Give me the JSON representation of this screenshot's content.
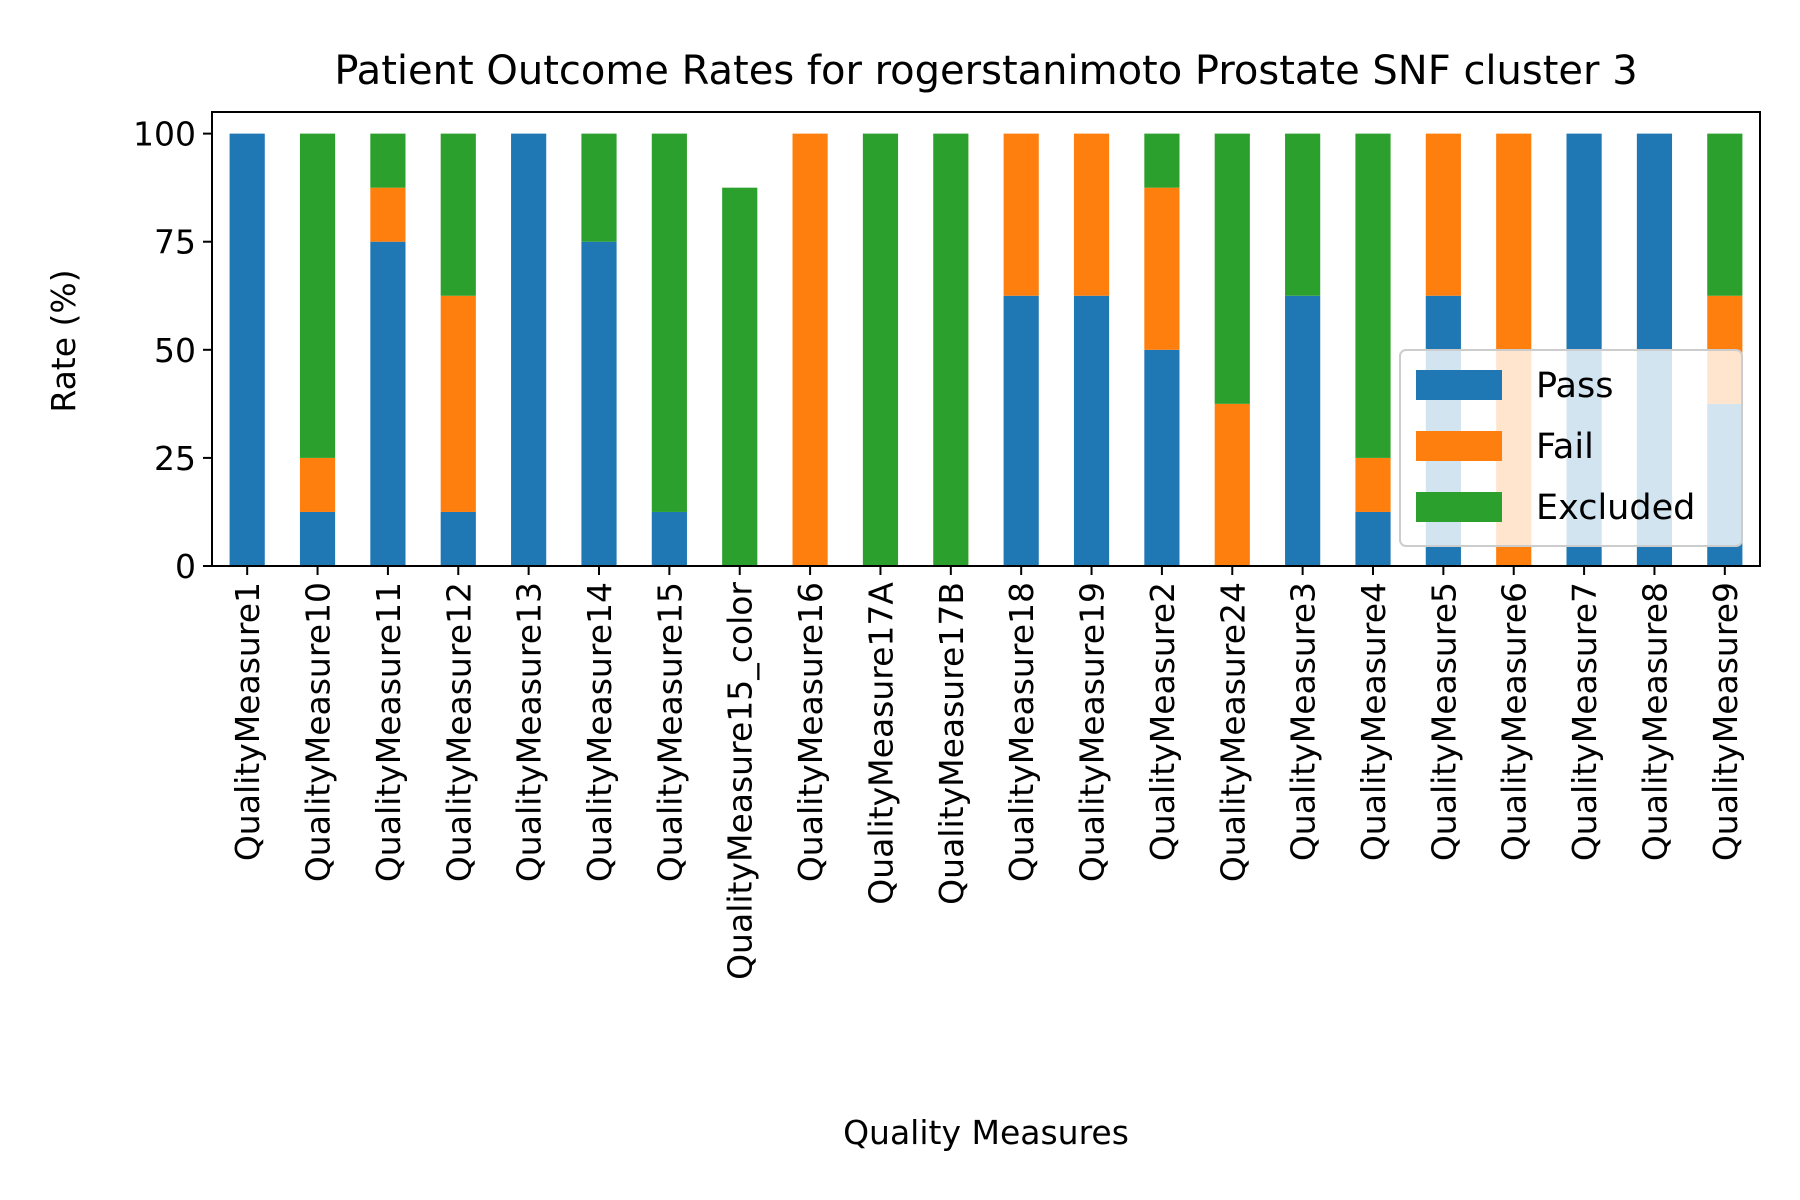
{
  "chart_data": {
    "type": "bar",
    "stacked": true,
    "title": "Patient Outcome Rates for rogerstanimoto Prostate SNF cluster 3",
    "xlabel": "Quality Measures",
    "ylabel": "Rate (%)",
    "ylim": [
      0,
      105
    ],
    "yticks": [
      "0",
      "25",
      "50",
      "75",
      "100"
    ],
    "grid": false,
    "legend_position": "lower right",
    "categories": [
      "QualityMeasure1",
      "QualityMeasure10",
      "QualityMeasure11",
      "QualityMeasure12",
      "QualityMeasure13",
      "QualityMeasure14",
      "QualityMeasure15",
      "QualityMeasure15_color",
      "QualityMeasure16",
      "QualityMeasure17A",
      "QualityMeasure17B",
      "QualityMeasure18",
      "QualityMeasure19",
      "QualityMeasure2",
      "QualityMeasure24",
      "QualityMeasure3",
      "QualityMeasure4",
      "QualityMeasure5",
      "QualityMeasure6",
      "QualityMeasure7",
      "QualityMeasure8",
      "QualityMeasure9"
    ],
    "series": [
      {
        "name": "Pass",
        "color": "#1f77b4",
        "values": [
          100,
          12.5,
          75,
          12.5,
          100,
          75,
          12.5,
          0,
          0,
          0,
          0,
          62.5,
          62.5,
          50,
          0,
          62.5,
          12.5,
          62.5,
          0,
          100,
          100,
          37.5
        ]
      },
      {
        "name": "Fail",
        "color": "#ff7f0e",
        "values": [
          0,
          12.5,
          12.5,
          50,
          0,
          0,
          0,
          0,
          100,
          0,
          0,
          37.5,
          37.5,
          37.5,
          37.5,
          0,
          12.5,
          37.5,
          100,
          0,
          0,
          25
        ]
      },
      {
        "name": "Excluded",
        "color": "#2ca02c",
        "values": [
          0,
          75,
          12.5,
          37.5,
          0,
          25,
          87.5,
          87.5,
          0,
          100,
          100,
          0,
          0,
          12.5,
          62.5,
          37.5,
          75,
          0,
          0,
          0,
          0,
          37.5
        ]
      }
    ]
  }
}
